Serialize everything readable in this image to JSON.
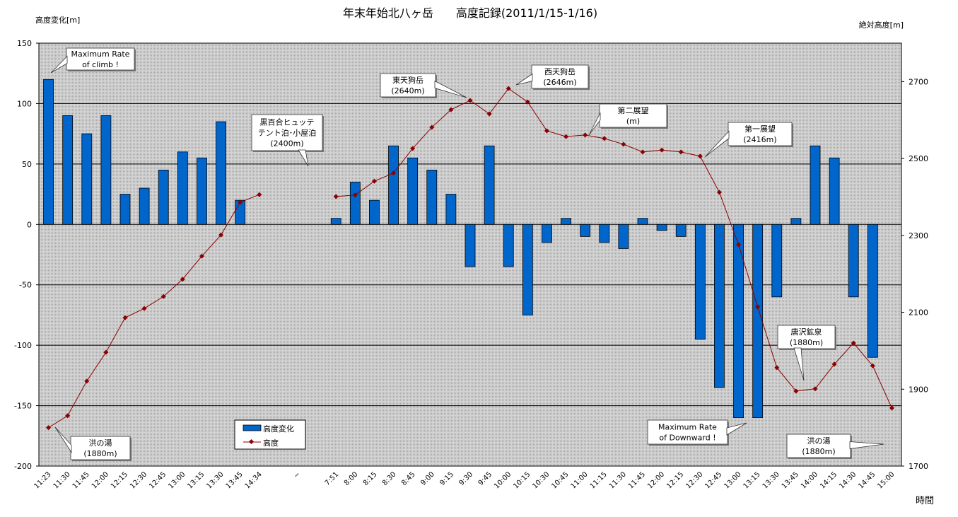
{
  "chart_data": {
    "type": "bar+line",
    "title": "年末年始北八ヶ岳　　高度記録(2011/1/15-1/16)",
    "ylabel_left": "高度変化[m]",
    "ylabel_right": "絶対高度[m]",
    "xlabel": "時間",
    "ylim_left": [
      -200,
      150
    ],
    "yticks_left": [
      150,
      100,
      50,
      0,
      -50,
      -100,
      -150,
      -200
    ],
    "ylim_right": [
      1700,
      2800
    ],
    "yticks_right": [
      2700,
      2500,
      2300,
      2100,
      1900,
      1700
    ],
    "grid": "horizontal",
    "categories": [
      "11:23",
      "11:30",
      "11:45",
      "12:00",
      "12:15",
      "12:30",
      "12:45",
      "13:00",
      "13:15",
      "13:30",
      "13:45",
      "14:34",
      "",
      "~",
      "",
      "7:51",
      "8:00",
      "8:15",
      "8:30",
      "8:45",
      "9:00",
      "9:15",
      "9:30",
      "9:45",
      "10:00",
      "10:15",
      "10:30",
      "10:45",
      "11:00",
      "11:15",
      "11:30",
      "11:45",
      "12:00",
      "12:15",
      "12:30",
      "12:45",
      "13:00",
      "13:15",
      "13:30",
      "13:45",
      "14:00",
      "14:15",
      "14:30",
      "14:45",
      "15:00"
    ],
    "series": [
      {
        "name": "高度変化",
        "type": "bar",
        "axis": "left",
        "color": "#0066cc",
        "values": [
          120,
          90,
          75,
          90,
          25,
          30,
          45,
          60,
          55,
          85,
          20,
          null,
          null,
          null,
          null,
          5,
          35,
          20,
          65,
          55,
          45,
          25,
          -35,
          65,
          -35,
          -75,
          -15,
          5,
          -10,
          -15,
          -20,
          5,
          -5,
          -10,
          -95,
          -135,
          -160,
          -160,
          -60,
          5,
          65,
          55,
          -60,
          -110,
          null
        ]
      },
      {
        "name": "高度",
        "type": "line",
        "axis": "right",
        "color": "#8b0000",
        "values": [
          1800,
          1831,
          1921,
          1996,
          2086,
          2110,
          2141,
          2186,
          2246,
          2301,
          2386,
          2406,
          null,
          null,
          null,
          2401,
          2405,
          2441,
          2462,
          2526,
          2581,
          2627,
          2651,
          2616,
          2682,
          2647,
          2572,
          2557,
          2561,
          2552,
          2537,
          2517,
          2522,
          2517,
          2506,
          2412,
          2276,
          2114,
          1956,
          1895,
          1901,
          1965,
          2020,
          1961,
          1851
        ]
      }
    ],
    "legend": {
      "position": "bottom-left",
      "items": [
        "高度変化",
        "高度"
      ]
    },
    "annotations": [
      {
        "lines": [
          "Maximum Rate",
          "of climb !"
        ]
      },
      {
        "lines": [
          "黒百合ヒュッテ",
          "テント泊･小屋泊",
          "(2400m)"
        ]
      },
      {
        "lines": [
          "東天狗岳",
          "(2640m)"
        ]
      },
      {
        "lines": [
          "西天狗岳",
          "(2646m)"
        ]
      },
      {
        "lines": [
          "第二展望",
          "(m)"
        ]
      },
      {
        "lines": [
          "第一展望",
          "(2416m)"
        ]
      },
      {
        "lines": [
          "唐沢鉱泉",
          "(1880m)"
        ]
      },
      {
        "lines": [
          "Maximum Rate",
          "of Downward !"
        ]
      },
      {
        "lines": [
          "洪の湯",
          "(1880m)"
        ]
      },
      {
        "lines": [
          "洪の湯",
          "(1880m)"
        ]
      }
    ]
  }
}
